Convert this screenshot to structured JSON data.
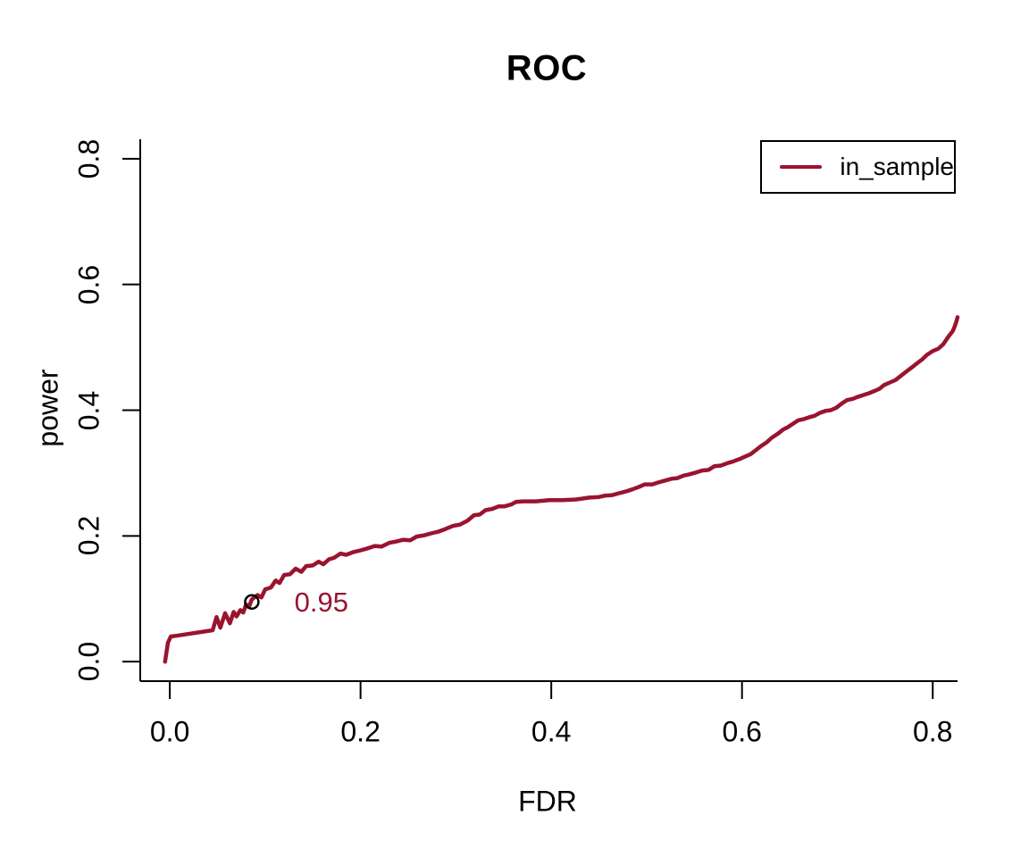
{
  "title": "ROC",
  "axis_color": "#000000",
  "chart_data": {
    "type": "line",
    "title": "ROC",
    "xlabel": "FDR",
    "ylabel": "power",
    "xlim": [
      -0.031,
      0.826
    ],
    "ylim": [
      -0.031,
      0.831
    ],
    "x_ticks": [
      "0.0",
      "0.2",
      "0.4",
      "0.6",
      "0.8"
    ],
    "x_tick_values": [
      0.0,
      0.2,
      0.4,
      0.6,
      0.8
    ],
    "y_ticks": [
      "0.0",
      "0.2",
      "0.4",
      "0.6",
      "0.8"
    ],
    "y_tick_values": [
      0.0,
      0.2,
      0.4,
      0.6,
      0.8
    ],
    "grid": false,
    "legend_position": "top-right",
    "series": [
      {
        "name": "in_sample",
        "color": "#9A142F",
        "points": [
          [
            -0.005,
            0.0
          ],
          [
            -0.002,
            0.03
          ],
          [
            0.001,
            0.04
          ],
          [
            0.006,
            0.041
          ],
          [
            0.045,
            0.05
          ],
          [
            0.049,
            0.071
          ],
          [
            0.053,
            0.054
          ],
          [
            0.058,
            0.077
          ],
          [
            0.063,
            0.061
          ],
          [
            0.067,
            0.079
          ],
          [
            0.07,
            0.072
          ],
          [
            0.074,
            0.082
          ],
          [
            0.077,
            0.078
          ],
          [
            0.08,
            0.091
          ],
          [
            0.083,
            0.087
          ],
          [
            0.086,
            0.099
          ],
          [
            0.092,
            0.106
          ],
          [
            0.096,
            0.102
          ],
          [
            0.1,
            0.115
          ],
          [
            0.106,
            0.118
          ],
          [
            0.111,
            0.129
          ],
          [
            0.115,
            0.125
          ],
          [
            0.12,
            0.138
          ],
          [
            0.126,
            0.139
          ],
          [
            0.132,
            0.148
          ],
          [
            0.138,
            0.143
          ],
          [
            0.143,
            0.152
          ],
          [
            0.15,
            0.153
          ],
          [
            0.156,
            0.159
          ],
          [
            0.161,
            0.155
          ],
          [
            0.167,
            0.163
          ],
          [
            0.172,
            0.165
          ],
          [
            0.179,
            0.172
          ],
          [
            0.185,
            0.17
          ],
          [
            0.192,
            0.174
          ],
          [
            0.2,
            0.177
          ],
          [
            0.207,
            0.18
          ],
          [
            0.215,
            0.184
          ],
          [
            0.222,
            0.183
          ],
          [
            0.23,
            0.189
          ],
          [
            0.237,
            0.191
          ],
          [
            0.245,
            0.194
          ],
          [
            0.252,
            0.193
          ],
          [
            0.259,
            0.199
          ],
          [
            0.267,
            0.201
          ],
          [
            0.274,
            0.204
          ],
          [
            0.282,
            0.207
          ],
          [
            0.289,
            0.211
          ],
          [
            0.297,
            0.216
          ],
          [
            0.304,
            0.218
          ],
          [
            0.312,
            0.224
          ],
          [
            0.319,
            0.233
          ],
          [
            0.325,
            0.234
          ],
          [
            0.331,
            0.241
          ],
          [
            0.338,
            0.243
          ],
          [
            0.345,
            0.247
          ],
          [
            0.351,
            0.247
          ],
          [
            0.358,
            0.25
          ],
          [
            0.363,
            0.254
          ],
          [
            0.37,
            0.255
          ],
          [
            0.384,
            0.255
          ],
          [
            0.398,
            0.257
          ],
          [
            0.412,
            0.257
          ],
          [
            0.426,
            0.258
          ],
          [
            0.44,
            0.261
          ],
          [
            0.45,
            0.262
          ],
          [
            0.456,
            0.264
          ],
          [
            0.464,
            0.265
          ],
          [
            0.471,
            0.268
          ],
          [
            0.479,
            0.271
          ],
          [
            0.485,
            0.274
          ],
          [
            0.492,
            0.278
          ],
          [
            0.498,
            0.282
          ],
          [
            0.506,
            0.282
          ],
          [
            0.512,
            0.285
          ],
          [
            0.519,
            0.288
          ],
          [
            0.526,
            0.291
          ],
          [
            0.532,
            0.292
          ],
          [
            0.539,
            0.296
          ],
          [
            0.545,
            0.298
          ],
          [
            0.552,
            0.301
          ],
          [
            0.558,
            0.304
          ],
          [
            0.565,
            0.305
          ],
          [
            0.571,
            0.311
          ],
          [
            0.578,
            0.312
          ],
          [
            0.585,
            0.316
          ],
          [
            0.59,
            0.318
          ],
          [
            0.597,
            0.322
          ],
          [
            0.603,
            0.326
          ],
          [
            0.609,
            0.33
          ],
          [
            0.614,
            0.336
          ],
          [
            0.62,
            0.343
          ],
          [
            0.626,
            0.349
          ],
          [
            0.631,
            0.356
          ],
          [
            0.637,
            0.362
          ],
          [
            0.643,
            0.369
          ],
          [
            0.648,
            0.373
          ],
          [
            0.654,
            0.379
          ],
          [
            0.659,
            0.384
          ],
          [
            0.665,
            0.386
          ],
          [
            0.671,
            0.389
          ],
          [
            0.676,
            0.391
          ],
          [
            0.682,
            0.396
          ],
          [
            0.688,
            0.399
          ],
          [
            0.693,
            0.4
          ],
          [
            0.699,
            0.404
          ],
          [
            0.704,
            0.41
          ],
          [
            0.71,
            0.416
          ],
          [
            0.716,
            0.418
          ],
          [
            0.721,
            0.421
          ],
          [
            0.727,
            0.424
          ],
          [
            0.733,
            0.427
          ],
          [
            0.738,
            0.43
          ],
          [
            0.744,
            0.434
          ],
          [
            0.749,
            0.44
          ],
          [
            0.755,
            0.444
          ],
          [
            0.761,
            0.448
          ],
          [
            0.766,
            0.454
          ],
          [
            0.772,
            0.461
          ],
          [
            0.778,
            0.468
          ],
          [
            0.783,
            0.474
          ],
          [
            0.789,
            0.481
          ],
          [
            0.794,
            0.488
          ],
          [
            0.8,
            0.494
          ],
          [
            0.806,
            0.498
          ],
          [
            0.811,
            0.505
          ],
          [
            0.816,
            0.516
          ],
          [
            0.821,
            0.526
          ],
          [
            0.823,
            0.533
          ],
          [
            0.825,
            0.542
          ],
          [
            0.826,
            0.548
          ]
        ]
      }
    ],
    "marker": {
      "x": 0.086,
      "y": 0.095,
      "label": "0.95",
      "label_x": 0.159,
      "label_y": 0.094,
      "marker_color": "#000000"
    }
  },
  "legend": {
    "items": [
      {
        "label": "in_sample",
        "color": "#9A142F"
      }
    ]
  }
}
